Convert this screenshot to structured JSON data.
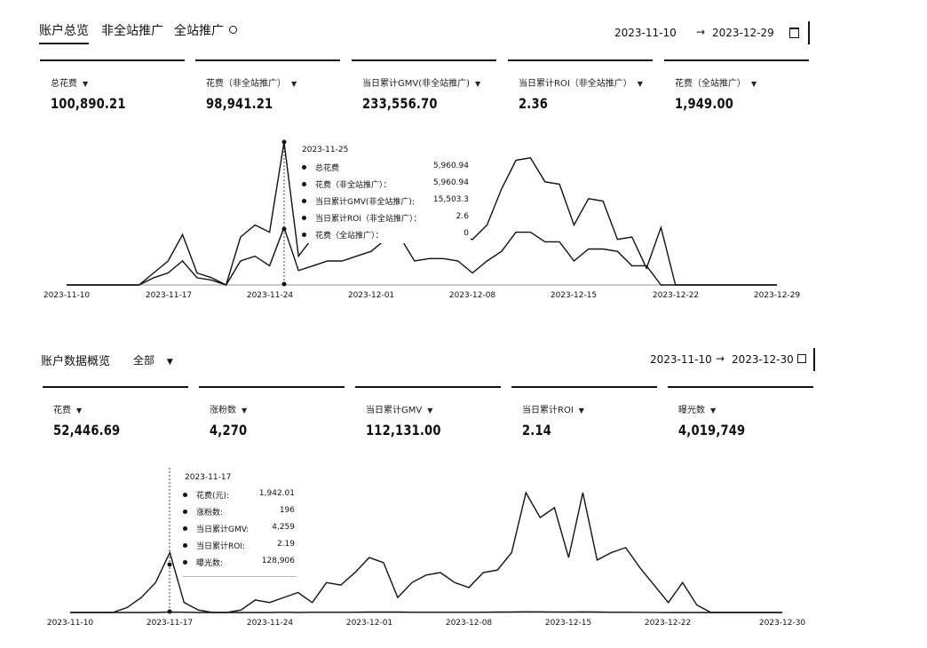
{
  "top": {
    "tabs": [
      "账户总览",
      "非全站推广",
      "全站推广"
    ],
    "date_start": "2023-11-10",
    "date_arrow": "→",
    "date_end": "2023-12-29",
    "metrics": [
      {
        "label": "总花费",
        "value": "100,890.21"
      },
      {
        "label": "花费（非全站推广）",
        "value": "98,941.21"
      },
      {
        "label": "当日累计GMV(非全站推广)",
        "value": "233,556.70"
      },
      {
        "label": "当日累计ROI（非全站推广）",
        "value": "2.36"
      },
      {
        "label": "花费（全站推广）",
        "value": "1,949.00"
      }
    ],
    "tooltip": {
      "date": "2023-11-25",
      "rows": [
        {
          "k": "总花费",
          "v": "5,960.94"
        },
        {
          "k": "花费（非全站推广）：",
          "v": "5,960.94"
        },
        {
          "k": "当日累计GMV(非全站推广):",
          "v": "15,503.3"
        },
        {
          "k": "当日累计ROI（非全站推广）：",
          "v": "2.6"
        },
        {
          "k": "花费（全站推广）：",
          "v": "0"
        }
      ]
    }
  },
  "bottom": {
    "title": "账户数据概览",
    "filter": "全部",
    "date_start": "2023-11-10",
    "date_arrow": "→",
    "date_end": "2023-12-30",
    "metrics": [
      {
        "label": "花费",
        "value": "52,446.69"
      },
      {
        "label": "涨粉数",
        "value": "4,270"
      },
      {
        "label": "当日累计GMV",
        "value": "112,131.00"
      },
      {
        "label": "当日累计ROI",
        "value": "2.14"
      },
      {
        "label": "曝光数",
        "value": "4,019,749"
      }
    ],
    "tooltip": {
      "date": "2023-11-17",
      "rows": [
        {
          "k": "花费(元):",
          "v": "1,942.01"
        },
        {
          "k": "涨粉数:",
          "v": "196"
        },
        {
          "k": "当日累计GMV:",
          "v": "4,259"
        },
        {
          "k": "当日累计ROI:",
          "v": "2.19"
        },
        {
          "k": "曝光数:",
          "v": "128,906"
        }
      ]
    }
  },
  "chart_data": [
    {
      "type": "line",
      "x_ticks": [
        "2023-11-10",
        "2023-11-17",
        "2023-11-24",
        "2023-12-01",
        "2023-12-08",
        "2023-12-15",
        "2023-12-22",
        "2023-12-29"
      ],
      "series": [
        {
          "name": "总花费",
          "values": [
            0,
            0,
            0,
            0,
            0,
            0,
            500,
            1000,
            2100,
            500,
            300,
            0,
            2000,
            2500,
            2200,
            5960,
            1200,
            2000,
            2300,
            2300,
            2400,
            2900,
            3500,
            3600,
            2000,
            2100,
            2200,
            2000,
            1900,
            2500,
            4000,
            5200,
            5300,
            4300,
            4200,
            2500,
            3600,
            3500,
            1900,
            2000,
            700,
            2400,
            0,
            0,
            0,
            0,
            0,
            0,
            0,
            0
          ]
        },
        {
          "name": "当日累计GMV(非全站推广)",
          "values": [
            0,
            0,
            0,
            0,
            0,
            0,
            300,
            500,
            1000,
            300,
            200,
            0,
            1000,
            1200,
            800,
            2400,
            600,
            800,
            1000,
            1000,
            1200,
            1400,
            1900,
            2000,
            1000,
            1100,
            1100,
            1000,
            500,
            1000,
            1400,
            2200,
            2200,
            1800,
            1800,
            1000,
            1500,
            1500,
            1400,
            800,
            800,
            0,
            0,
            0,
            0,
            0,
            0,
            0,
            0,
            0
          ]
        }
      ]
    },
    {
      "type": "line",
      "x_ticks": [
        "2023-11-10",
        "2023-11-17",
        "2023-11-24",
        "2023-12-01",
        "2023-12-08",
        "2023-12-15",
        "2023-12-22",
        "2023-12-30"
      ],
      "series": [
        {
          "name": "曝光数",
          "values": [
            0,
            0,
            0,
            0,
            1000,
            3000,
            6000,
            12000,
            2000,
            500,
            0,
            0,
            500,
            2500,
            2000,
            3000,
            4000,
            2000,
            6000,
            5500,
            8000,
            11000,
            10000,
            3000,
            6000,
            7500,
            8000,
            6000,
            5000,
            8000,
            8500,
            12000,
            24000,
            19000,
            21000,
            11000,
            24000,
            10500,
            12000,
            13000,
            9000,
            5500,
            2000,
            6000,
            1500,
            0,
            0,
            0,
            0,
            0,
            0
          ]
        },
        {
          "name": "花费(元)",
          "values": [
            0,
            0,
            0,
            0,
            0,
            0,
            0,
            100,
            50,
            0,
            0,
            0,
            0,
            0,
            0,
            50,
            0,
            50,
            50,
            50,
            50,
            80,
            80,
            80,
            50,
            50,
            50,
            50,
            50,
            50,
            80,
            100,
            150,
            120,
            100,
            80,
            120,
            80,
            60,
            50,
            30,
            20,
            0,
            0,
            0,
            0,
            0,
            0,
            0,
            0,
            0
          ]
        }
      ]
    }
  ]
}
